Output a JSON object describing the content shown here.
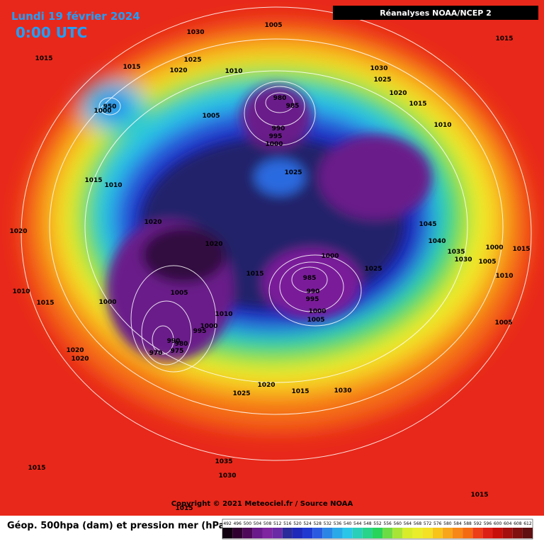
{
  "header": {
    "date": "Lundi 19 février 2024",
    "time": "0:00 UTC",
    "source": "Réanalyses NOAA/NCEP 2"
  },
  "isobar_labels": [
    1030,
    1005,
    1015,
    1015,
    1025,
    1020,
    1015,
    1010,
    1030,
    1025,
    1020,
    1015,
    1010,
    950,
    1000,
    1005,
    980,
    985,
    990,
    995,
    1000,
    1025,
    1015,
    1010,
    1020,
    1020,
    1020,
    1045,
    1040,
    1035,
    1030,
    1000,
    1015,
    1005,
    1010,
    1000,
    1025,
    985,
    990,
    995,
    1000,
    1005,
    1015,
    1010,
    1015,
    1005,
    1000,
    1010,
    995,
    1000,
    990,
    980,
    975,
    970,
    1005,
    1020,
    1020,
    1025,
    1020,
    1015,
    1030,
    1035,
    1030,
    1015,
    1015,
    1015
  ],
  "footer": {
    "copyright": "Copyright © 2021 Meteociel.fr / Source NOAA",
    "legend": "Géop. 500hpa (dam) et pression mer (hPa)"
  },
  "color_scale": {
    "ticks": [
      492,
      496,
      500,
      504,
      508,
      512,
      516,
      520,
      524,
      528,
      532,
      536,
      540,
      544,
      548,
      552,
      556,
      560,
      564,
      568,
      572,
      576,
      580,
      584,
      588,
      592,
      596,
      600,
      604,
      608,
      612
    ]
  }
}
